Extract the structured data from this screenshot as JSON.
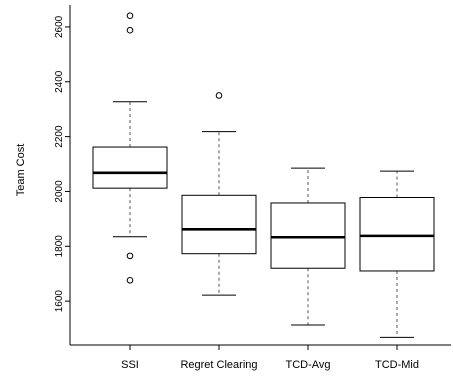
{
  "chart_data": {
    "type": "boxplot",
    "title": "",
    "xlabel": "",
    "ylabel": "Team Cost",
    "ylim": [
      1440,
      2680
    ],
    "yticks": [
      1600,
      1800,
      2000,
      2200,
      2400,
      2600
    ],
    "categories": [
      "SSI",
      "Regret Clearing",
      "TCD-Avg",
      "TCD-Mid"
    ],
    "boxes": [
      {
        "name": "SSI",
        "whisker_low": 1835,
        "q1": 2012,
        "median": 2068,
        "q3": 2162,
        "whisker_high": 2327,
        "outliers": [
          1765,
          1676,
          2588,
          2641
        ]
      },
      {
        "name": "Regret Clearing",
        "whisker_low": 1622,
        "q1": 1773,
        "median": 1862,
        "q3": 1986,
        "whisker_high": 2218,
        "outliers": [
          2350
        ]
      },
      {
        "name": "TCD-Avg",
        "whisker_low": 1513,
        "q1": 1720,
        "median": 1833,
        "q3": 1958,
        "whisker_high": 2085,
        "outliers": []
      },
      {
        "name": "TCD-Mid",
        "whisker_low": 1468,
        "q1": 1710,
        "median": 1838,
        "q3": 1978,
        "whisker_high": 2074,
        "outliers": []
      }
    ],
    "grid": false,
    "legend": "none",
    "colors": {
      "box_fill": "#ffffff",
      "stroke": "#000000",
      "whisker": "#555555"
    }
  }
}
